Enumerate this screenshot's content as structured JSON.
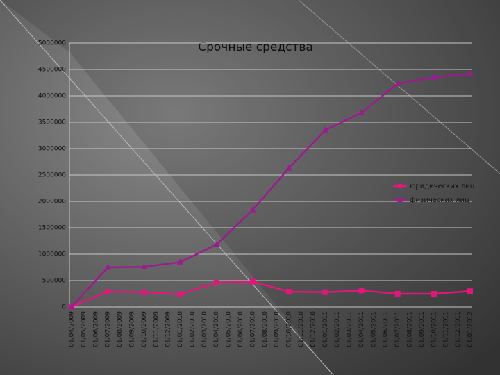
{
  "chart_data": {
    "type": "line",
    "title": "Срочные средства",
    "categories": [
      "01/04/2009",
      "01/05/2009",
      "01/06/2009",
      "01/07/2009",
      "01/08/2009",
      "01/09/2009",
      "01/10/2009",
      "01/11/2009",
      "01/12/2009",
      "01/01/2010",
      "01/02/2010",
      "01/03/2010",
      "01/04/2010",
      "01/05/2010",
      "01/06/2010",
      "01/07/2010",
      "01/08/2010",
      "01/09/2010",
      "01/10/2010",
      "01/11/2010",
      "01/12/2010",
      "01/01/2011",
      "01/02/2011",
      "01/03/2011",
      "01/04/2011",
      "01/05/2011",
      "01/06/2011",
      "01/07/2011",
      "01/08/2011",
      "01/09/2011",
      "01/10/2011",
      "01/11/2011",
      "01/12/2011",
      "01/01/2012"
    ],
    "series": [
      {
        "name": "юридических лиц",
        "color": "#e3167c",
        "marker": "square",
        "x": [
          "01/04/2009",
          "01/07/2009",
          "01/10/2009",
          "01/01/2010",
          "01/04/2010",
          "01/07/2010",
          "01/10/2010",
          "01/01/2011",
          "01/04/2011",
          "01/07/2011",
          "01/10/2011",
          "01/01/2012"
        ],
        "values": [
          0,
          290000,
          280000,
          240000,
          460000,
          480000,
          290000,
          280000,
          310000,
          250000,
          250000,
          300000
        ]
      },
      {
        "name": "физических лиц",
        "color": "#9c1b8f",
        "marker": "triangle",
        "x": [
          "01/04/2009",
          "01/07/2009",
          "01/10/2009",
          "01/01/2010",
          "01/04/2010",
          "01/07/2010",
          "01/10/2010",
          "01/01/2011",
          "01/04/2011",
          "01/07/2011",
          "01/10/2011",
          "01/01/2012"
        ],
        "values": [
          0,
          750000,
          760000,
          850000,
          1180000,
          1840000,
          2630000,
          3350000,
          3680000,
          4230000,
          4350000,
          4420000
        ]
      }
    ],
    "ylim": [
      0,
      5000000
    ],
    "yticks": [
      0,
      500000,
      1000000,
      1500000,
      2000000,
      2500000,
      3000000,
      3500000,
      4000000,
      4500000,
      5000000
    ],
    "grid": true,
    "legend": "right"
  }
}
